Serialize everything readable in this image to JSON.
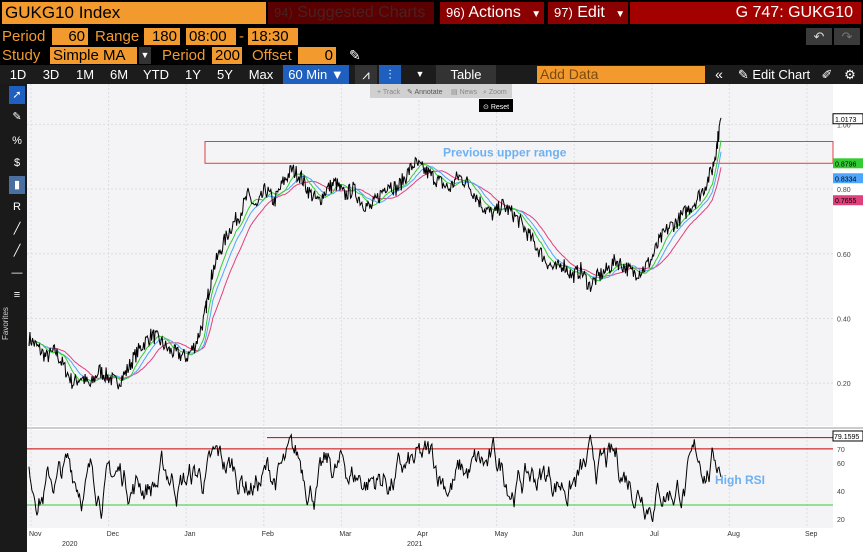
{
  "header": {
    "ticker": "GUKG10 Index",
    "suggested": {
      "num": "94)",
      "label": "Suggested Charts"
    },
    "actions": {
      "num": "96)",
      "label": "Actions"
    },
    "edit": {
      "num": "97)",
      "label": "Edit"
    },
    "security": "G 747: GUKG10"
  },
  "params": {
    "period_label": "Period",
    "period_value": "60",
    "range_label": "Range",
    "range_value": "180",
    "time_from": "08:00",
    "dash": "-",
    "time_to": "18:30",
    "study_label": "Study",
    "study_value": "Simple MA",
    "study_period_label": "Period",
    "study_period_value": "200",
    "offset_label": "Offset",
    "offset_value": "0"
  },
  "toolbar": {
    "ranges": [
      "1D",
      "3D",
      "1M",
      "6M",
      "YTD",
      "1Y",
      "5Y",
      "Max"
    ],
    "interval": "60 Min",
    "table_label": "Table",
    "add_data_placeholder": "Add Data",
    "edit_chart_label": "Edit Chart"
  },
  "popup": {
    "track": "Track",
    "annotate": "Annotate",
    "news": "News",
    "zoom": "Zoom",
    "reset": "Reset"
  },
  "left_tools": [
    "cursor-icon",
    "pen-icon",
    "percent-icon",
    "dollar-icon",
    "bar-icon",
    "r-icon",
    "line-tool-icon",
    "ray-icon",
    "hline-icon",
    "fib-icon"
  ],
  "favorites_label": "Favorites",
  "colors": {
    "accent": "#f29a2e",
    "brand_red": "#8b0000",
    "price": "#000000",
    "ma_green": "#33cc33",
    "ma_blue": "#4da6ff",
    "ma_pink": "#e0407a",
    "rsi_line_red": "#cc0000",
    "rsi_line_green": "#33cc33",
    "annotation_blue": "#6fb0f0"
  },
  "chart_data": [
    {
      "type": "line",
      "title": "",
      "annotation_range": "Previous upper range",
      "y_ticks": [
        "0.20",
        "0.40",
        "0.60",
        "0.80",
        "1.00"
      ],
      "ylim": [
        0.08,
        1.1
      ],
      "x_ticks": [
        "Nov",
        "Dec",
        "Jan",
        "Feb",
        "Mar",
        "Apr",
        "May",
        "Jun",
        "Jul",
        "Aug",
        "Sep"
      ],
      "year_labels": [
        "2020",
        "2021"
      ],
      "last_values": [
        {
          "label": "1.0173",
          "value": 1.0173,
          "color": "#ffffff"
        },
        {
          "label": "0.8796",
          "value": 0.8796,
          "color": "#33cc33"
        },
        {
          "label": "0.8334",
          "value": 0.8334,
          "color": "#4da6ff"
        },
        {
          "label": "0.7655",
          "value": 0.7655,
          "color": "#e0407a"
        }
      ],
      "range_box": [
        0.8797,
        0.947
      ],
      "price_series": [
        [
          0,
          0.34
        ],
        [
          2,
          0.31
        ],
        [
          4,
          0.28
        ],
        [
          6,
          0.3
        ],
        [
          8,
          0.25
        ],
        [
          10,
          0.2
        ],
        [
          12,
          0.22
        ],
        [
          14,
          0.19
        ],
        [
          16,
          0.24
        ],
        [
          18,
          0.22
        ],
        [
          20,
          0.2
        ],
        [
          22,
          0.23
        ],
        [
          24,
          0.28
        ],
        [
          26,
          0.32
        ],
        [
          28,
          0.35
        ],
        [
          30,
          0.33
        ],
        [
          32,
          0.3
        ],
        [
          34,
          0.29
        ],
        [
          36,
          0.28
        ],
        [
          38,
          0.32
        ],
        [
          40,
          0.4
        ],
        [
          41,
          0.48
        ],
        [
          42,
          0.55
        ],
        [
          44,
          0.62
        ],
        [
          46,
          0.68
        ],
        [
          48,
          0.72
        ],
        [
          50,
          0.78
        ],
        [
          52,
          0.74
        ],
        [
          54,
          0.8
        ],
        [
          56,
          0.76
        ],
        [
          58,
          0.82
        ],
        [
          60,
          0.86
        ],
        [
          62,
          0.84
        ],
        [
          64,
          0.79
        ],
        [
          66,
          0.76
        ],
        [
          68,
          0.8
        ],
        [
          70,
          0.82
        ],
        [
          72,
          0.78
        ],
        [
          74,
          0.8
        ],
        [
          76,
          0.76
        ],
        [
          78,
          0.74
        ],
        [
          80,
          0.78
        ],
        [
          82,
          0.82
        ],
        [
          84,
          0.8
        ],
        [
          86,
          0.84
        ],
        [
          88,
          0.88
        ],
        [
          90,
          0.86
        ],
        [
          92,
          0.84
        ],
        [
          94,
          0.82
        ],
        [
          96,
          0.8
        ],
        [
          98,
          0.84
        ],
        [
          100,
          0.82
        ],
        [
          102,
          0.78
        ],
        [
          104,
          0.74
        ],
        [
          106,
          0.72
        ],
        [
          108,
          0.75
        ],
        [
          110,
          0.73
        ],
        [
          112,
          0.7
        ],
        [
          114,
          0.66
        ],
        [
          116,
          0.62
        ],
        [
          118,
          0.58
        ],
        [
          120,
          0.55
        ],
        [
          122,
          0.57
        ],
        [
          124,
          0.53
        ],
        [
          126,
          0.55
        ],
        [
          128,
          0.5
        ],
        [
          130,
          0.53
        ],
        [
          132,
          0.55
        ],
        [
          134,
          0.58
        ],
        [
          136,
          0.56
        ],
        [
          138,
          0.54
        ],
        [
          140,
          0.55
        ],
        [
          142,
          0.58
        ],
        [
          144,
          0.64
        ],
        [
          146,
          0.68
        ],
        [
          148,
          0.7
        ],
        [
          150,
          0.73
        ],
        [
          152,
          0.76
        ],
        [
          154,
          0.8
        ],
        [
          156,
          0.86
        ],
        [
          157,
          0.93
        ],
        [
          158,
          1.02
        ]
      ]
    },
    {
      "type": "line",
      "title": "",
      "annotation": "High RSI",
      "y_ticks": [
        "20",
        "40",
        "60",
        "70"
      ],
      "ylim": [
        15,
        82
      ],
      "last_value": {
        "label": "79.1595",
        "value": 79.1595
      },
      "overbought": 70,
      "oversold": 30,
      "upper_band": 78
    }
  ]
}
